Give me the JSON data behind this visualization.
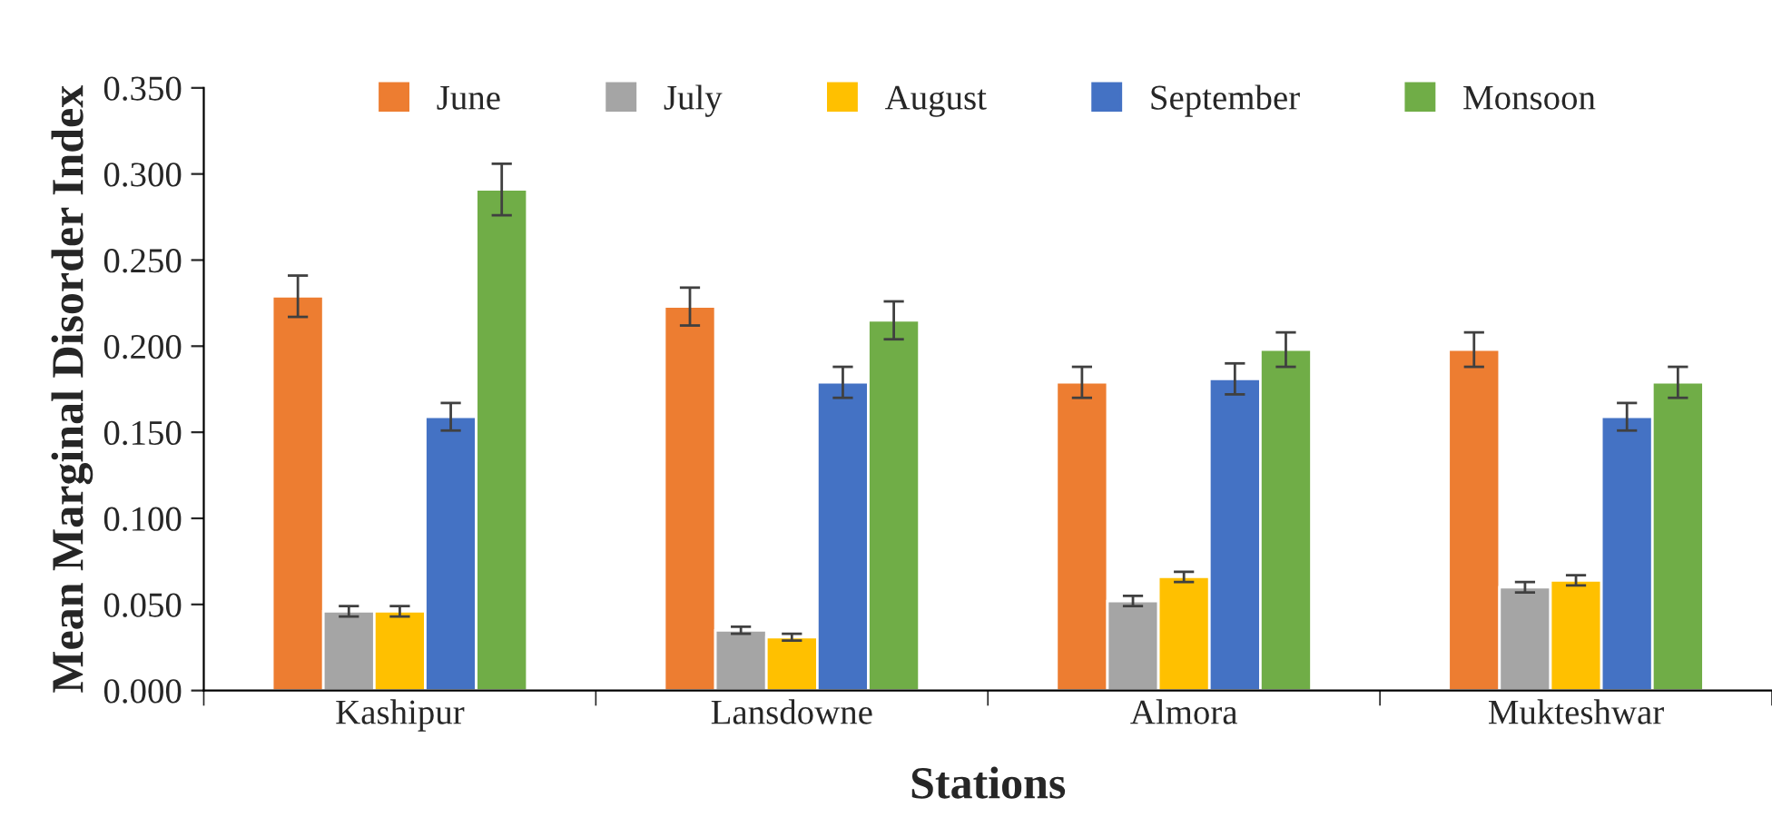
{
  "chart_data": {
    "type": "bar",
    "xlabel": "Stations",
    "ylabel": "Mean Marginal Disorder Index",
    "categories": [
      "Kashipur",
      "Lansdowne",
      "Almora",
      "Mukteshwar"
    ],
    "series": [
      {
        "name": "June",
        "color": "#ed7d31",
        "values": [
          0.229,
          0.223,
          0.179,
          0.198
        ],
        "errors": [
          0.012,
          0.011,
          0.009,
          0.01
        ]
      },
      {
        "name": "July",
        "color": "#a5a5a5",
        "values": [
          0.046,
          0.035,
          0.052,
          0.06
        ],
        "errors": [
          0.003,
          0.002,
          0.003,
          0.003
        ]
      },
      {
        "name": "August",
        "color": "#ffc000",
        "values": [
          0.046,
          0.031,
          0.066,
          0.064
        ],
        "errors": [
          0.003,
          0.002,
          0.003,
          0.003
        ]
      },
      {
        "name": "September",
        "color": "#4472c4",
        "values": [
          0.159,
          0.179,
          0.181,
          0.159
        ],
        "errors": [
          0.008,
          0.009,
          0.009,
          0.008
        ]
      },
      {
        "name": "Monsoon",
        "color": "#70ad47",
        "values": [
          0.291,
          0.215,
          0.198,
          0.179
        ],
        "errors": [
          0.015,
          0.011,
          0.01,
          0.009
        ]
      }
    ],
    "ylim": [
      0,
      0.35
    ],
    "yticks": [
      {
        "value": 0,
        "label": "0.000"
      },
      {
        "value": 0.05,
        "label": "0.050"
      },
      {
        "value": 0.1,
        "label": "0.100"
      },
      {
        "value": 0.15,
        "label": "0.150"
      },
      {
        "value": 0.2,
        "label": "0.200"
      },
      {
        "value": 0.25,
        "label": "0.250"
      },
      {
        "value": 0.3,
        "label": "0.300"
      },
      {
        "value": 0.35,
        "label": "0.350"
      }
    ],
    "grid": false,
    "legend": "top"
  }
}
